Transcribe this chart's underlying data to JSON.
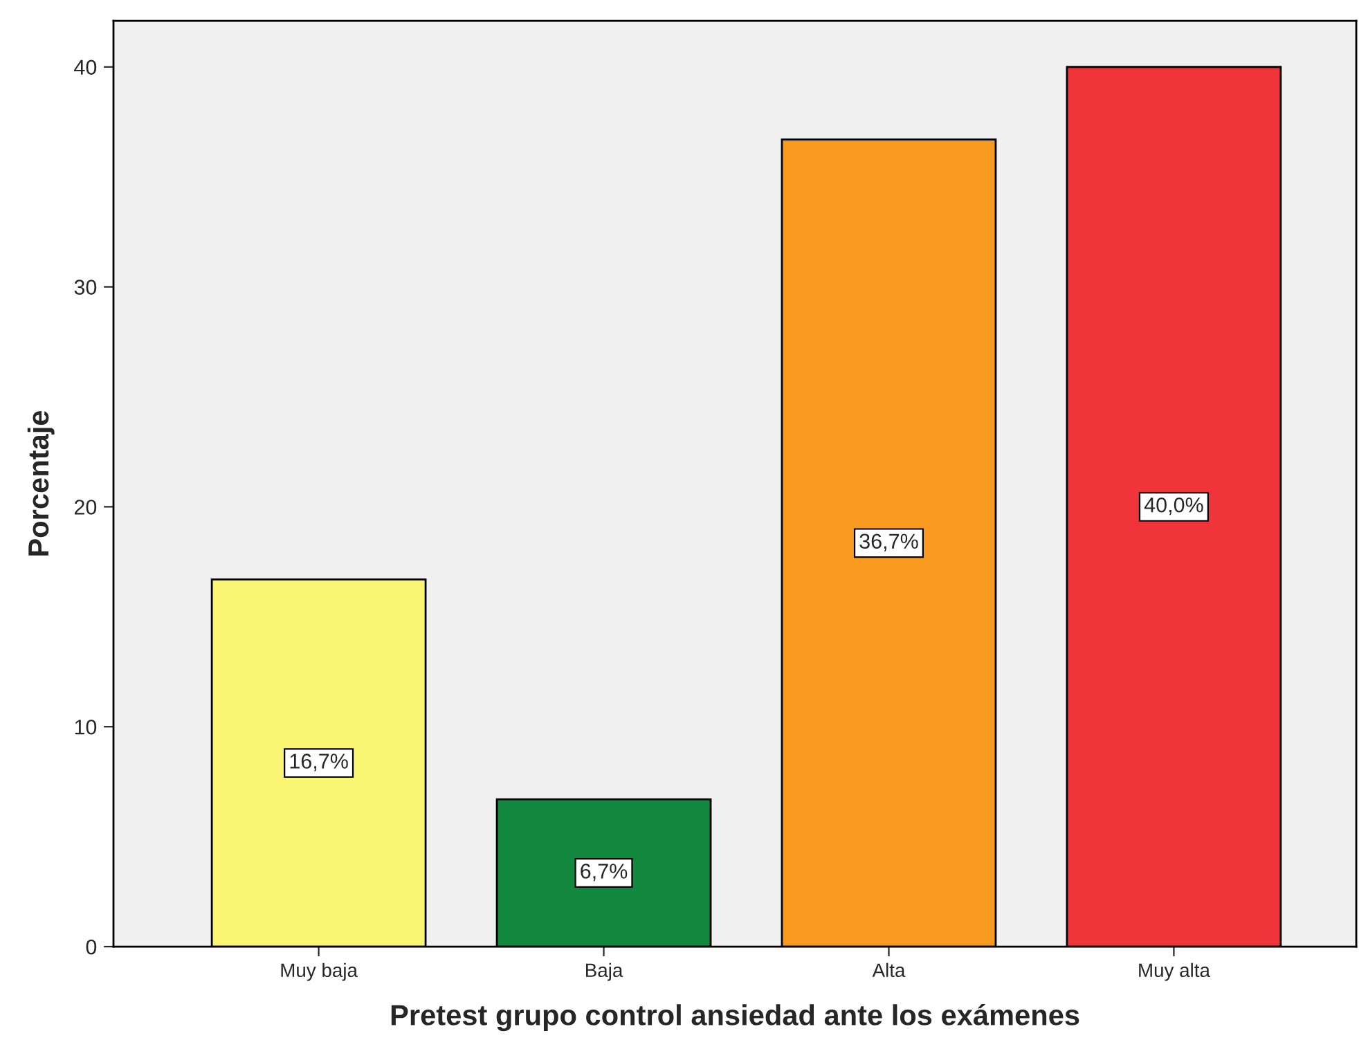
{
  "chart_data": {
    "type": "bar",
    "xlabel": "Pretest grupo control ansiedad ante los exámenes",
    "ylabel": "Porcentaje",
    "categories": [
      "Muy baja",
      "Baja",
      "Alta",
      "Muy alta"
    ],
    "values": [
      16.7,
      6.7,
      36.7,
      40.0
    ],
    "colors": [
      "#fbf574",
      "#13893f",
      "#f89a1f",
      "#ef343a"
    ],
    "value_labels": [
      "16,7%",
      "6,7%",
      "36,7%",
      "40,0%"
    ],
    "ylim": [
      0,
      42.1
    ],
    "yticks": [
      0,
      10,
      20,
      30,
      40
    ],
    "grid": false,
    "legend": false
  }
}
